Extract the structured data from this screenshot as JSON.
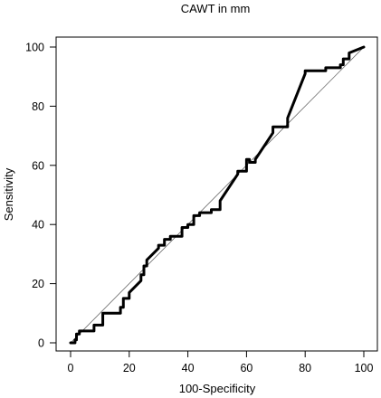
{
  "chart_data": {
    "type": "line",
    "title": "CAWT in mm",
    "xlabel": "100-Specificity",
    "ylabel": "Sensitivity",
    "xlim": [
      0,
      100
    ],
    "ylim": [
      0,
      100
    ],
    "x_ticks": [
      "0",
      "20",
      "40",
      "60",
      "80",
      "100"
    ],
    "y_ticks": [
      "0",
      "20",
      "40",
      "60",
      "80",
      "100"
    ],
    "grid": false,
    "legend": "none",
    "reference_line": {
      "x": [
        0,
        100
      ],
      "y": [
        0,
        100
      ],
      "style": "diagonal"
    },
    "series": [
      {
        "x": [
          0,
          1.5,
          1.5,
          2,
          2,
          3,
          3,
          8,
          8,
          11,
          11,
          17,
          17,
          18,
          18,
          20,
          20,
          24,
          24,
          25,
          25,
          26,
          26,
          30,
          30,
          32,
          32,
          34,
          34,
          38,
          38,
          40,
          40,
          42,
          42,
          44,
          44,
          48,
          48,
          51,
          51,
          57,
          57,
          60,
          60,
          61,
          61,
          63,
          63,
          69,
          69,
          74,
          74,
          80,
          80,
          87,
          87,
          92,
          92,
          93,
          93,
          95,
          95,
          100
        ],
        "y": [
          0,
          0,
          1,
          1,
          3,
          3,
          4,
          4,
          6,
          6,
          10,
          10,
          12,
          12,
          15,
          15,
          17,
          21,
          23,
          23,
          26,
          26,
          28,
          32,
          33,
          33,
          35,
          35,
          36,
          36,
          39,
          39,
          40,
          40,
          43,
          43,
          44,
          44,
          45,
          45,
          48,
          57,
          58,
          58,
          62,
          62,
          61,
          61,
          62,
          71,
          73,
          73,
          76,
          91,
          92,
          92,
          93,
          93,
          94,
          94,
          96,
          96,
          98,
          100
        ]
      }
    ]
  }
}
